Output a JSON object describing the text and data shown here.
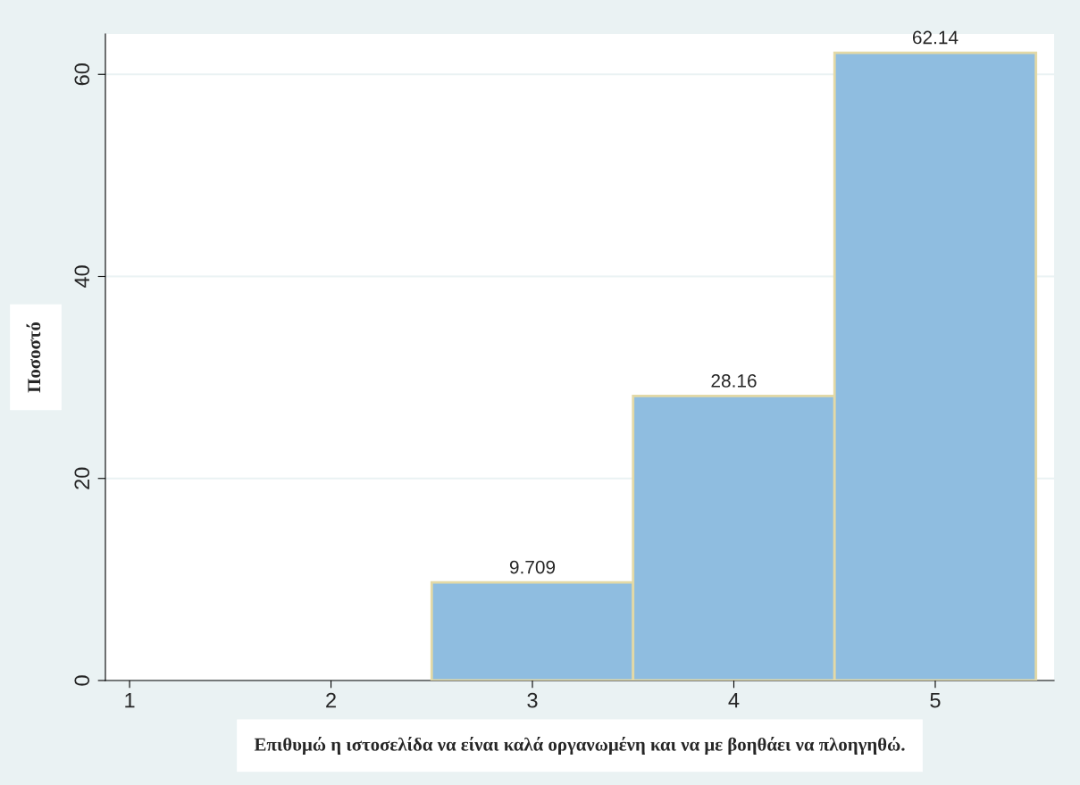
{
  "chart_data": {
    "type": "histogram",
    "xlabel": "Επιθυμώ η ιστοσελίδα να είναι καλά οργανωμένη και να με βοηθάει να πλοηγηθώ.",
    "ylabel": "Ποσοστό",
    "bins": [
      2.5,
      3.5,
      4.5,
      5.5
    ],
    "values": [
      9.709,
      28.16,
      62.14
    ],
    "color": "#8fbde0",
    "xlim": [
      0.88,
      5.59
    ],
    "xticks": [
      1,
      2,
      3,
      4,
      5
    ],
    "ylim": [
      0,
      64
    ],
    "yticks": [
      0,
      20,
      40,
      60
    ],
    "grid": "y",
    "data_labels": true
  }
}
